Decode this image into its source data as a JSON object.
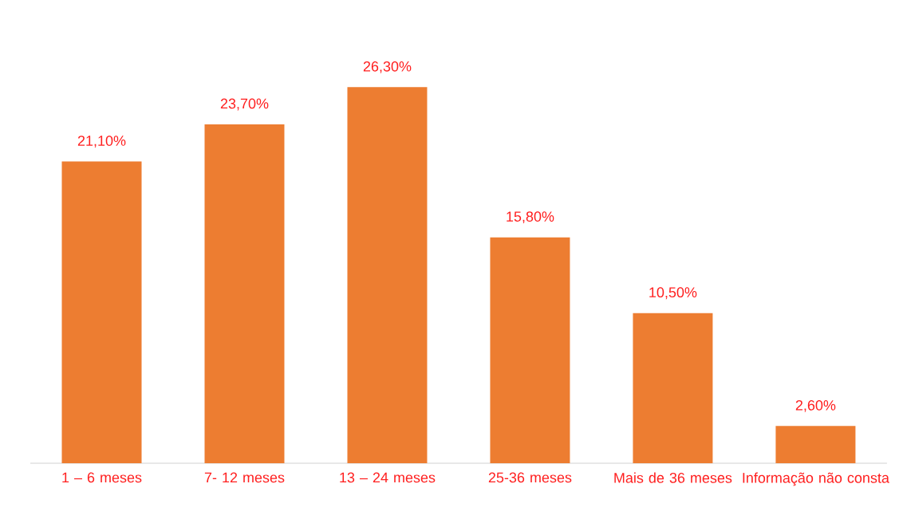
{
  "chart_data": {
    "type": "bar",
    "categories": [
      "1 – 6 meses",
      "7- 12 meses",
      "13 – 24 meses",
      "25-36 meses",
      "Mais de 36 meses",
      "Informação não consta"
    ],
    "values": [
      21.1,
      23.7,
      26.3,
      15.8,
      10.5,
      2.6
    ],
    "value_labels": [
      "21,10%",
      "23,70%",
      "26,30%",
      "15,80%",
      "10,50%",
      "2,60%"
    ],
    "color": "#ed7d31"
  }
}
